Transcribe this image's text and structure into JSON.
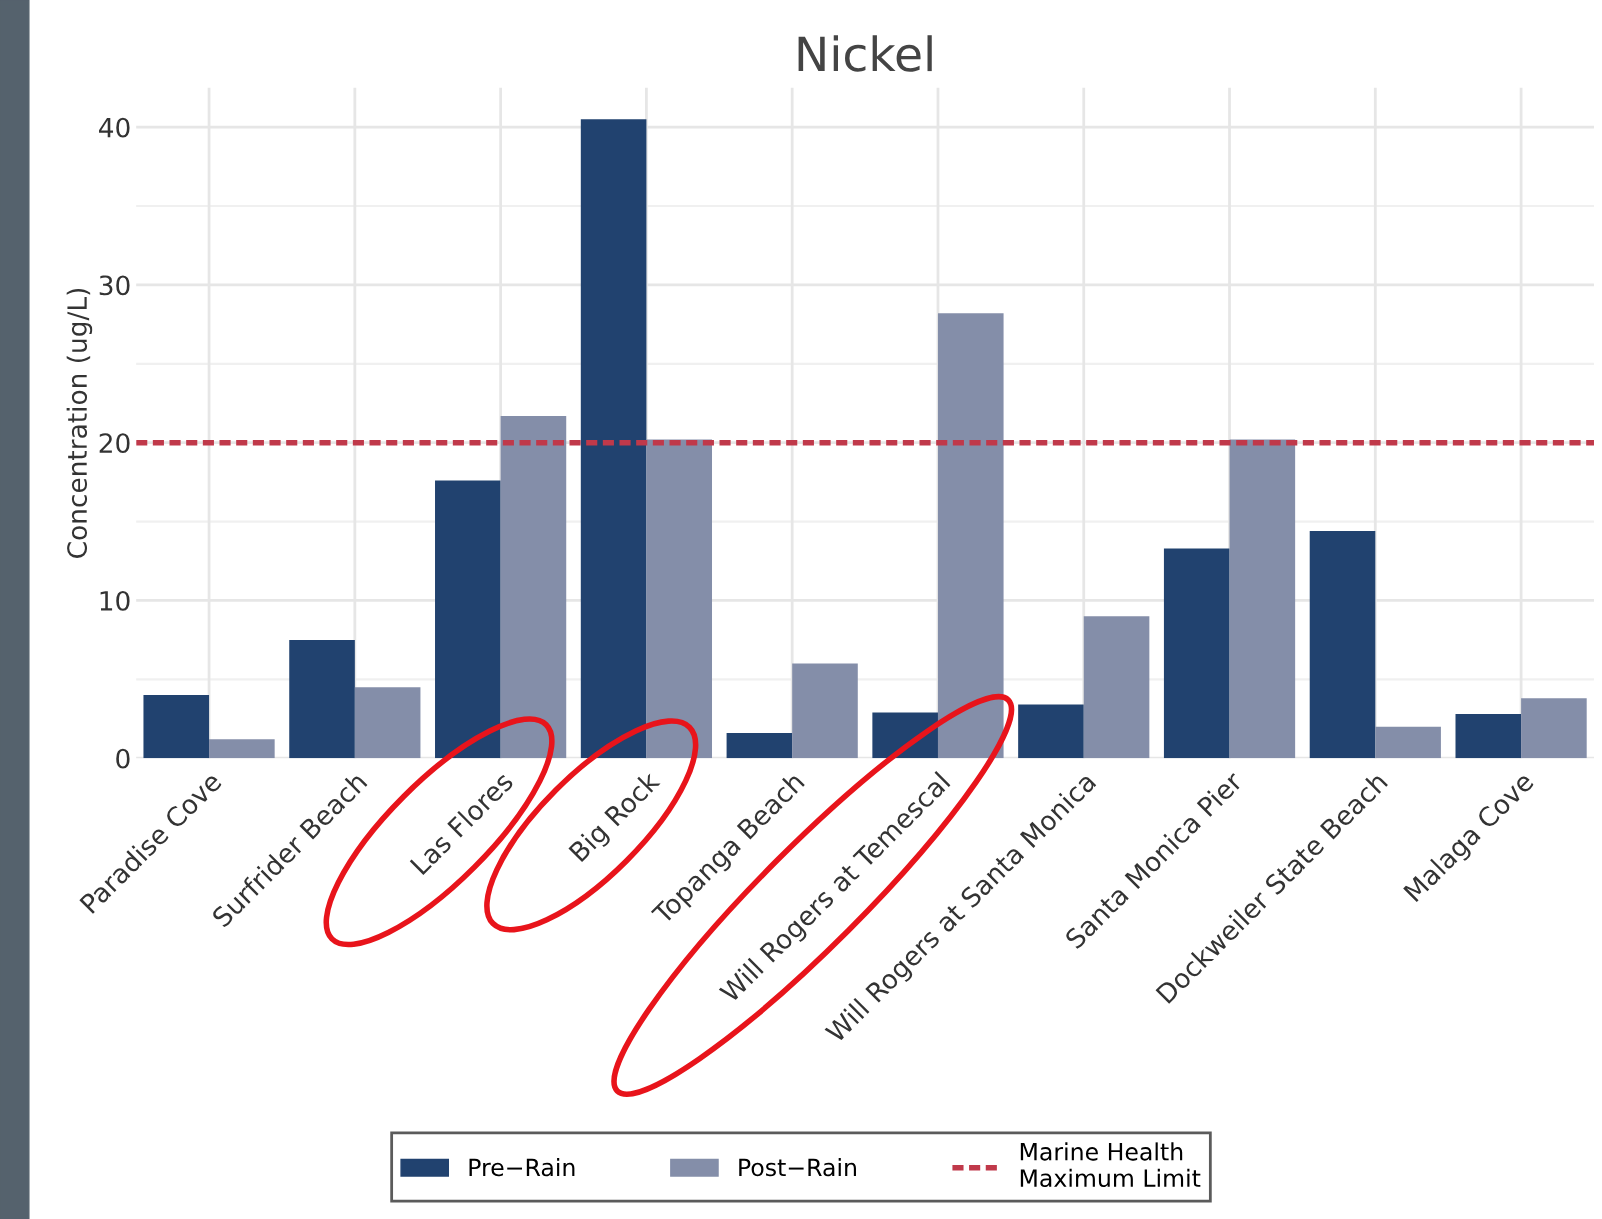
{
  "chart_data": {
    "type": "bar",
    "title": "Nickel",
    "ylabel": "Concentration (ug/L)",
    "categories": [
      "Paradise Cove",
      "Surfrider Beach",
      "Las Flores",
      "Big Rock",
      "Topanga Beach",
      "Will Rogers at Temescal",
      "Will Rogers at Santa Monica",
      "Santa Monica Pier",
      "Dockweiler State Beach",
      "Malaga Cove"
    ],
    "series": [
      {
        "name": "Pre−Rain",
        "color": "#21426f",
        "values": [
          4.0,
          7.5,
          17.6,
          40.5,
          1.6,
          2.9,
          3.4,
          13.3,
          14.4,
          2.8
        ]
      },
      {
        "name": "Post−Rain",
        "color": "#848ea9",
        "values": [
          1.2,
          4.5,
          21.7,
          20.2,
          6.0,
          28.2,
          9.0,
          20.2,
          2.0,
          3.8
        ]
      }
    ],
    "ref_lines": [
      {
        "axis": "y",
        "value": 20,
        "label": "Marine Health\nMaximum Limit",
        "color": "#c0394a",
        "line_style": "dashed"
      }
    ],
    "ylim": [
      0,
      42.5
    ],
    "yticks": [
      0,
      10,
      20,
      30,
      40
    ],
    "grid": true,
    "legend": "bottom"
  }
}
